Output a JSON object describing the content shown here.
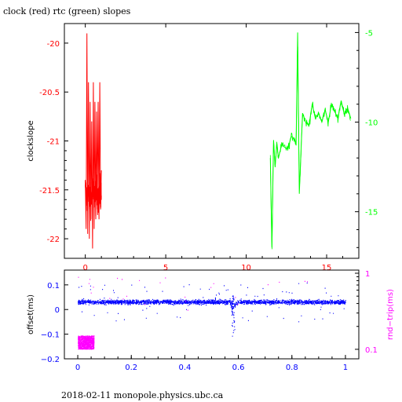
{
  "title": "clock (red) rtc (green) slopes",
  "footer": "2018-02-11 monopole.physics.ubc.ca",
  "colors": {
    "red": "#ff0000",
    "green": "#00ff00",
    "blue": "#0000ff",
    "magenta": "#ff00ff",
    "axis": "#000000"
  },
  "chart_data": [
    {
      "type": "line",
      "ylabel": "clockslope",
      "xlabel": "",
      "xlim": [
        -1.3,
        17
      ],
      "xticks": [
        0,
        5,
        10,
        15
      ],
      "ylim": [
        -22.2,
        -19.8
      ],
      "yticks": [
        -20,
        -20.5,
        -21,
        -21.5,
        -22
      ],
      "ytick_labels": [
        "-20",
        "-20.5",
        "-21",
        "-21.5",
        "-22"
      ],
      "y2lim": [
        -17.6,
        -4.5
      ],
      "y2ticks": [
        -5,
        -10,
        -15
      ],
      "y2tick_labels": [
        "-5",
        "-10",
        "-15"
      ],
      "series": [
        {
          "color": "red",
          "axis": "left",
          "x": [
            0.0,
            0.05,
            0.1,
            0.15,
            0.2,
            0.25,
            0.3,
            0.35,
            0.4,
            0.45,
            0.5,
            0.55,
            0.6,
            0.65,
            0.7,
            0.75,
            0.8,
            0.85,
            0.9,
            0.95,
            1.0
          ],
          "y": [
            -21.4,
            -21.9,
            -19.9,
            -21.95,
            -20.4,
            -22.0,
            -20.6,
            -21.8,
            -20.8,
            -22.1,
            -20.4,
            -21.9,
            -20.6,
            -21.8,
            -20.7,
            -21.6,
            -20.6,
            -21.8,
            -20.4,
            -21.7,
            -21.3
          ]
        },
        {
          "color": "green",
          "axis": "right",
          "x": [
            11.5,
            11.6,
            11.7,
            11.8,
            11.9,
            12.0,
            12.2,
            12.4,
            12.6,
            12.8,
            13.0,
            13.1,
            13.2,
            13.3,
            13.5,
            13.7,
            13.9,
            14.1,
            14.3,
            14.5,
            14.7,
            14.9,
            15.1,
            15.3,
            15.5,
            15.7,
            15.9,
            16.1,
            16.3,
            16.5
          ],
          "y": [
            -12.0,
            -17.0,
            -11.0,
            -12.5,
            -11.2,
            -12.0,
            -11.3,
            -11.4,
            -11.5,
            -10.8,
            -10.9,
            -11.3,
            -5.0,
            -14.0,
            -9.5,
            -10.0,
            -10.2,
            -9.0,
            -9.8,
            -9.5,
            -10.0,
            -9.3,
            -10.0,
            -9.0,
            -9.4,
            -9.8,
            -8.8,
            -9.6,
            -9.2,
            -9.8
          ]
        }
      ]
    },
    {
      "type": "scatter",
      "ylabel": "offset(ms)",
      "y2label": "rnd−trip(ms)",
      "xlim": [
        -0.05,
        1.05
      ],
      "xticks": [
        0,
        0.2,
        0.4,
        0.6,
        0.8,
        1
      ],
      "xtick_labels": [
        "0",
        "0.2",
        "0.4",
        "0.6",
        "0.8",
        "1"
      ],
      "ylim": [
        -0.2,
        0.16
      ],
      "yticks": [
        0.1,
        0,
        -0.1,
        -0.2
      ],
      "ytick_labels": [
        "0.1",
        "0",
        "−0.1",
        "−0.2"
      ],
      "y2log": true,
      "y2lim": [
        0.075,
        1.1
      ],
      "y2ticks": [
        1,
        0.1
      ],
      "y2tick_labels": [
        "1",
        "0.1"
      ],
      "series": [
        {
          "color": "blue",
          "axis": "left",
          "x_range": [
            0,
            1
          ],
          "y_center": 0.03,
          "y_spread": 0.015,
          "dip": {
            "x": 0.58,
            "y": -0.1
          }
        },
        {
          "color": "magenta",
          "axis": "right",
          "x_range": [
            0,
            0.06
          ],
          "y_range": [
            0.1,
            0.15
          ]
        }
      ]
    }
  ]
}
